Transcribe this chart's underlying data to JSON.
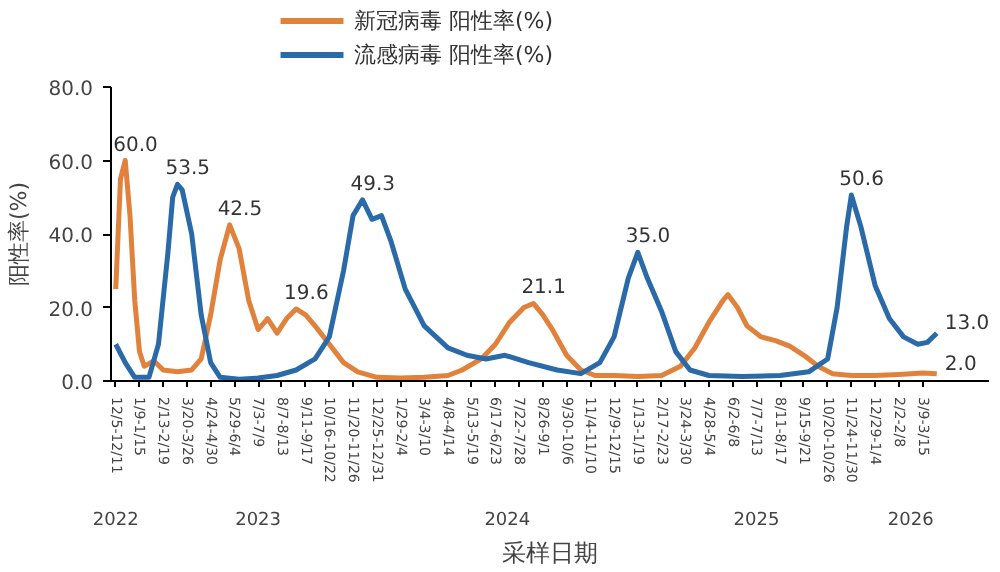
{
  "chart_data": {
    "type": "line",
    "xlabel": "采样日期",
    "ylabel": "阳性率(%)",
    "ylim": [
      0,
      80
    ],
    "yticks": [
      {
        "value": 0,
        "label": "0.0"
      },
      {
        "value": 20,
        "label": "20.0"
      },
      {
        "value": 40,
        "label": "40.0"
      },
      {
        "value": 60,
        "label": "60.0"
      },
      {
        "value": 80,
        "label": "80.0"
      }
    ],
    "xlim": [
      "2022-11-28",
      "2026-06-15"
    ],
    "xticks": [
      {
        "value": "2022-12-05",
        "label": "12/5-12/11"
      },
      {
        "value": "2023-01-09",
        "label": "1/9-1/15"
      },
      {
        "value": "2023-02-13",
        "label": "2/13-2/19"
      },
      {
        "value": "2023-03-20",
        "label": "3/20-3/26"
      },
      {
        "value": "2023-04-24",
        "label": "4/24-4/30"
      },
      {
        "value": "2023-05-29",
        "label": "5/29-6/4"
      },
      {
        "value": "2023-07-03",
        "label": "7/3-7/9"
      },
      {
        "value": "2023-08-07",
        "label": "8/7-8/13"
      },
      {
        "value": "2023-09-11",
        "label": "9/11-9/17"
      },
      {
        "value": "2023-10-16",
        "label": "10/16-10/22"
      },
      {
        "value": "2023-11-20",
        "label": "11/20-11/26"
      },
      {
        "value": "2023-12-25",
        "label": "12/25-12/31"
      },
      {
        "value": "2024-01-29",
        "label": "1/29-2/4"
      },
      {
        "value": "2024-03-04",
        "label": "3/4-3/10"
      },
      {
        "value": "2024-04-08",
        "label": "4/8-4/14"
      },
      {
        "value": "2024-05-13",
        "label": "5/13-5/19"
      },
      {
        "value": "2024-06-17",
        "label": "6/17-6/23"
      },
      {
        "value": "2024-07-22",
        "label": "7/22-7/28"
      },
      {
        "value": "2024-08-26",
        "label": "8/26-9/1"
      },
      {
        "value": "2024-09-30",
        "label": "9/30-10/6"
      },
      {
        "value": "2024-11-04",
        "label": "11/4-11/10"
      },
      {
        "value": "2024-12-09",
        "label": "12/9-12/15"
      },
      {
        "value": "2025-01-13",
        "label": "1/13-1/19"
      },
      {
        "value": "2025-02-17",
        "label": "2/17-2/23"
      },
      {
        "value": "2025-03-24",
        "label": "3/24-3/30"
      },
      {
        "value": "2025-04-28",
        "label": "4/28-5/4"
      },
      {
        "value": "2025-06-02",
        "label": "6/2-6/8"
      },
      {
        "value": "2025-07-07",
        "label": "7/7-7/13"
      },
      {
        "value": "2025-08-11",
        "label": "8/11-8/17"
      },
      {
        "value": "2025-09-15",
        "label": "9/15-9/21"
      },
      {
        "value": "2025-10-20",
        "label": "10/20-10/26"
      },
      {
        "value": "2025-11-24",
        "label": "11/24-11/30"
      },
      {
        "value": "2025-12-29",
        "label": "12/29-1/4"
      },
      {
        "value": "2026-02-02",
        "label": "2/2-2/8"
      },
      {
        "value": "2026-03-09",
        "label": "3/9-3/15"
      }
    ],
    "annotations": [
      "2022",
      "2023",
      "2024",
      "2025",
      "2026"
    ],
    "legend": "top left",
    "grid": false,
    "series": [
      {
        "name": "新冠病毒 阳性率(%)",
        "color": "#e0823c",
        "x": [
          "2022-12-05",
          "2022-12-12",
          "2022-12-19",
          "2022-12-26",
          "2023-01-02",
          "2023-01-09",
          "2023-01-16",
          "2023-01-30",
          "2023-02-13",
          "2023-03-06",
          "2023-03-27",
          "2023-04-10",
          "2023-04-24",
          "2023-05-08",
          "2023-05-22",
          "2023-06-05",
          "2023-06-19",
          "2023-07-03",
          "2023-07-17",
          "2023-07-31",
          "2023-08-14",
          "2023-08-28",
          "2023-09-11",
          "2023-09-25",
          "2023-10-16",
          "2023-11-06",
          "2023-11-27",
          "2023-12-25",
          "2024-01-29",
          "2024-03-04",
          "2024-04-08",
          "2024-04-29",
          "2024-05-27",
          "2024-06-17",
          "2024-07-08",
          "2024-07-29",
          "2024-08-12",
          "2024-08-26",
          "2024-09-09",
          "2024-09-30",
          "2024-10-21",
          "2024-11-11",
          "2024-12-09",
          "2025-01-13",
          "2025-02-17",
          "2025-03-17",
          "2025-04-07",
          "2025-04-28",
          "2025-05-19",
          "2025-05-26",
          "2025-06-09",
          "2025-06-23",
          "2025-07-14",
          "2025-08-04",
          "2025-08-25",
          "2025-09-15",
          "2025-10-06",
          "2025-10-27",
          "2025-11-24",
          "2025-12-29",
          "2026-02-02",
          "2026-03-09",
          "2026-03-30"
        ],
        "values": [
          25,
          55,
          60.0,
          45,
          22,
          8,
          4,
          5.5,
          3,
          2.5,
          3,
          6,
          18,
          33,
          42.5,
          36,
          22,
          14,
          17,
          13,
          17,
          19.6,
          18,
          15,
          10,
          5,
          2.5,
          1,
          0.8,
          1,
          1.5,
          3,
          6,
          10,
          16,
          20,
          21.1,
          18,
          14,
          7,
          3,
          1.5,
          1.5,
          1.2,
          1.5,
          4,
          9,
          16,
          22,
          23.5,
          20,
          15,
          12,
          11,
          9.5,
          7,
          4,
          2,
          1.5,
          1.5,
          1.8,
          2.2,
          2.0
        ],
        "value_labels": [
          null,
          null,
          "60.0",
          null,
          null,
          null,
          null,
          null,
          null,
          null,
          null,
          null,
          null,
          null,
          "42.5",
          null,
          null,
          null,
          null,
          null,
          null,
          "19.6",
          null,
          null,
          null,
          null,
          null,
          null,
          null,
          null,
          null,
          null,
          null,
          null,
          null,
          null,
          "21.1",
          null,
          null,
          null,
          null,
          null,
          null,
          null,
          null,
          null,
          null,
          null,
          null,
          null,
          null,
          null,
          null,
          null,
          null,
          null,
          null,
          null,
          null,
          null,
          null,
          null,
          "2.0"
        ]
      },
      {
        "name": "流感病毒 阳性率(%)",
        "color": "#2a6aa8",
        "x": [
          "2022-12-05",
          "2022-12-19",
          "2023-01-02",
          "2023-01-23",
          "2023-02-06",
          "2023-02-20",
          "2023-02-27",
          "2023-03-06",
          "2023-03-13",
          "2023-03-27",
          "2023-04-10",
          "2023-04-24",
          "2023-05-08",
          "2023-06-05",
          "2023-07-03",
          "2023-07-31",
          "2023-08-28",
          "2023-09-25",
          "2023-10-16",
          "2023-11-06",
          "2023-11-20",
          "2023-12-04",
          "2023-12-18",
          "2024-01-01",
          "2024-01-15",
          "2024-02-05",
          "2024-03-04",
          "2024-04-08",
          "2024-05-06",
          "2024-06-03",
          "2024-07-01",
          "2024-08-05",
          "2024-09-16",
          "2024-10-21",
          "2024-11-18",
          "2024-12-09",
          "2024-12-30",
          "2025-01-13",
          "2025-01-27",
          "2025-02-17",
          "2025-03-10",
          "2025-03-31",
          "2025-04-28",
          "2025-06-16",
          "2025-08-11",
          "2025-09-22",
          "2025-10-20",
          "2025-11-03",
          "2025-11-17",
          "2025-11-24",
          "2025-12-08",
          "2025-12-29",
          "2026-01-19",
          "2026-02-09",
          "2026-03-02",
          "2026-03-16",
          "2026-03-30"
        ],
        "values": [
          10,
          5,
          1,
          1,
          10,
          35,
          50,
          53.5,
          52,
          40,
          18,
          5,
          1,
          0.5,
          0.8,
          1.5,
          3,
          6,
          12,
          30,
          45,
          49.3,
          44,
          45,
          38,
          25,
          15,
          9,
          7,
          6,
          7,
          5,
          3,
          2,
          5,
          12,
          28,
          35.0,
          28,
          19,
          8,
          3,
          1.5,
          1.2,
          1.5,
          2.5,
          6,
          20,
          42,
          50.6,
          42,
          26,
          17,
          12,
          10,
          10.5,
          13.0
        ],
        "value_labels": [
          null,
          null,
          null,
          null,
          null,
          null,
          null,
          "53.5",
          null,
          null,
          null,
          null,
          null,
          null,
          null,
          null,
          null,
          null,
          null,
          null,
          null,
          "49.3",
          null,
          null,
          null,
          null,
          null,
          null,
          null,
          null,
          null,
          null,
          null,
          null,
          null,
          null,
          null,
          "35.0",
          null,
          null,
          null,
          null,
          null,
          null,
          null,
          null,
          null,
          null,
          null,
          "50.6",
          null,
          null,
          null,
          null,
          null,
          null,
          "13.0"
        ]
      }
    ]
  }
}
